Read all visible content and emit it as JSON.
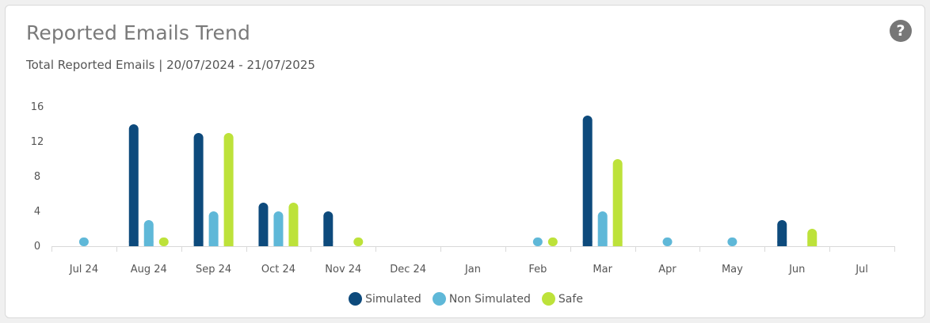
{
  "card": {
    "title": "Reported Emails Trend",
    "subtitle": "Total Reported Emails | 20/07/2024 - 21/07/2025",
    "help_icon": "question-circle-icon",
    "help_glyph": "?"
  },
  "colors": {
    "simulated": "#0d4a7c",
    "non_simulated": "#5fb8d8",
    "safe": "#bde23a",
    "grid": "#d9d9d9"
  },
  "chart_data": {
    "type": "bar",
    "categories": [
      "Jul 24",
      "Aug 24",
      "Sep 24",
      "Oct 24",
      "Nov 24",
      "Dec 24",
      "Jan",
      "Feb",
      "Mar",
      "Apr",
      "May",
      "Jun",
      "Jul"
    ],
    "series": [
      {
        "name": "Simulated",
        "values": [
          0,
          14,
          13,
          5,
          4,
          0,
          0,
          0,
          15,
          0,
          0,
          3,
          0
        ]
      },
      {
        "name": "Non Simulated",
        "values": [
          1,
          3,
          4,
          4,
          0,
          0,
          0,
          1,
          4,
          1,
          1,
          0,
          0
        ]
      },
      {
        "name": "Safe",
        "values": [
          0,
          1,
          13,
          5,
          1,
          0,
          0,
          1,
          10,
          0,
          0,
          2,
          0
        ]
      }
    ],
    "yticks": [
      0,
      4,
      8,
      12,
      16
    ],
    "ylim": [
      0,
      16
    ],
    "legend_position": "bottom",
    "grid": false
  }
}
